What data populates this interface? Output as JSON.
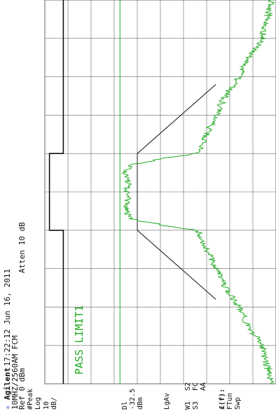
{
  "header": {
    "brand": "Agilent",
    "datetime": "17:22:12  Jun 16, 2011",
    "mode": "10MHZ/2560AM FCM",
    "atten": "Atten 10 dB",
    "ref": "Ref 0 dBm"
  },
  "left_panel": {
    "scale_lines": [
      "#Peak",
      "Log",
      "10",
      "dB/"
    ],
    "dl_lines": [
      "Dl",
      "-32.5",
      "dBm"
    ],
    "avg": "LgAv",
    "sweep_lines": [
      {
        "a": "W1",
        "b": "S2"
      },
      {
        "a": "S3",
        "b": "FC"
      },
      {
        "a": "",
        "b": "AA"
      }
    ],
    "func_lines": [
      "£(f):",
      "FTun",
      "Swp"
    ]
  },
  "status": "PASS LIMIT1",
  "colors": {
    "trace": "#22aa22",
    "limit": "#111111",
    "grid": "#666666",
    "text": "#111111",
    "status": "#22aa22"
  },
  "chart_data": {
    "type": "line",
    "rotated": "90° counter-clockwise (frequency increases upward)",
    "grid": true,
    "x": {
      "unit": "MHz",
      "range": [
        -50,
        50
      ],
      "divisions": 10
    },
    "y": {
      "unit": "dBm",
      "range": [
        -100,
        0
      ],
      "reference": 0,
      "per_division": 10
    },
    "display_line": -32.5,
    "series": [
      {
        "type": "line",
        "x": [
          -50,
          -45,
          -40,
          -35,
          -30,
          -25,
          -20,
          -15,
          -12,
          -10,
          -9,
          -7,
          -5,
          -2,
          0,
          2,
          5,
          7,
          9,
          10,
          12,
          15,
          20,
          25,
          30,
          35,
          40,
          45,
          50
        ],
        "y": [
          -98,
          -96,
          -94,
          -88,
          -84,
          -78,
          -74,
          -70,
          -68,
          -66,
          -54,
          -37,
          -35,
          -36,
          -35,
          -36,
          -35,
          -37,
          -54,
          -66,
          -68,
          -70,
          -74,
          -78,
          -84,
          -88,
          -94,
          -96,
          -98
        ]
      }
    ],
    "limit_lines": [
      {
        "x": [
          -50,
          -10,
          -10,
          10,
          10,
          50
        ],
        "y": [
          -8,
          -8,
          -2,
          -2,
          -8,
          -8
        ]
      },
      {
        "x": [
          -28,
          -10,
          10,
          28
        ],
        "y": [
          -74,
          -40,
          -40,
          -74
        ]
      }
    ],
    "markers": [
      {
        "x": -46,
        "y": -96
      },
      {
        "x": 46,
        "y": -96
      }
    ]
  }
}
